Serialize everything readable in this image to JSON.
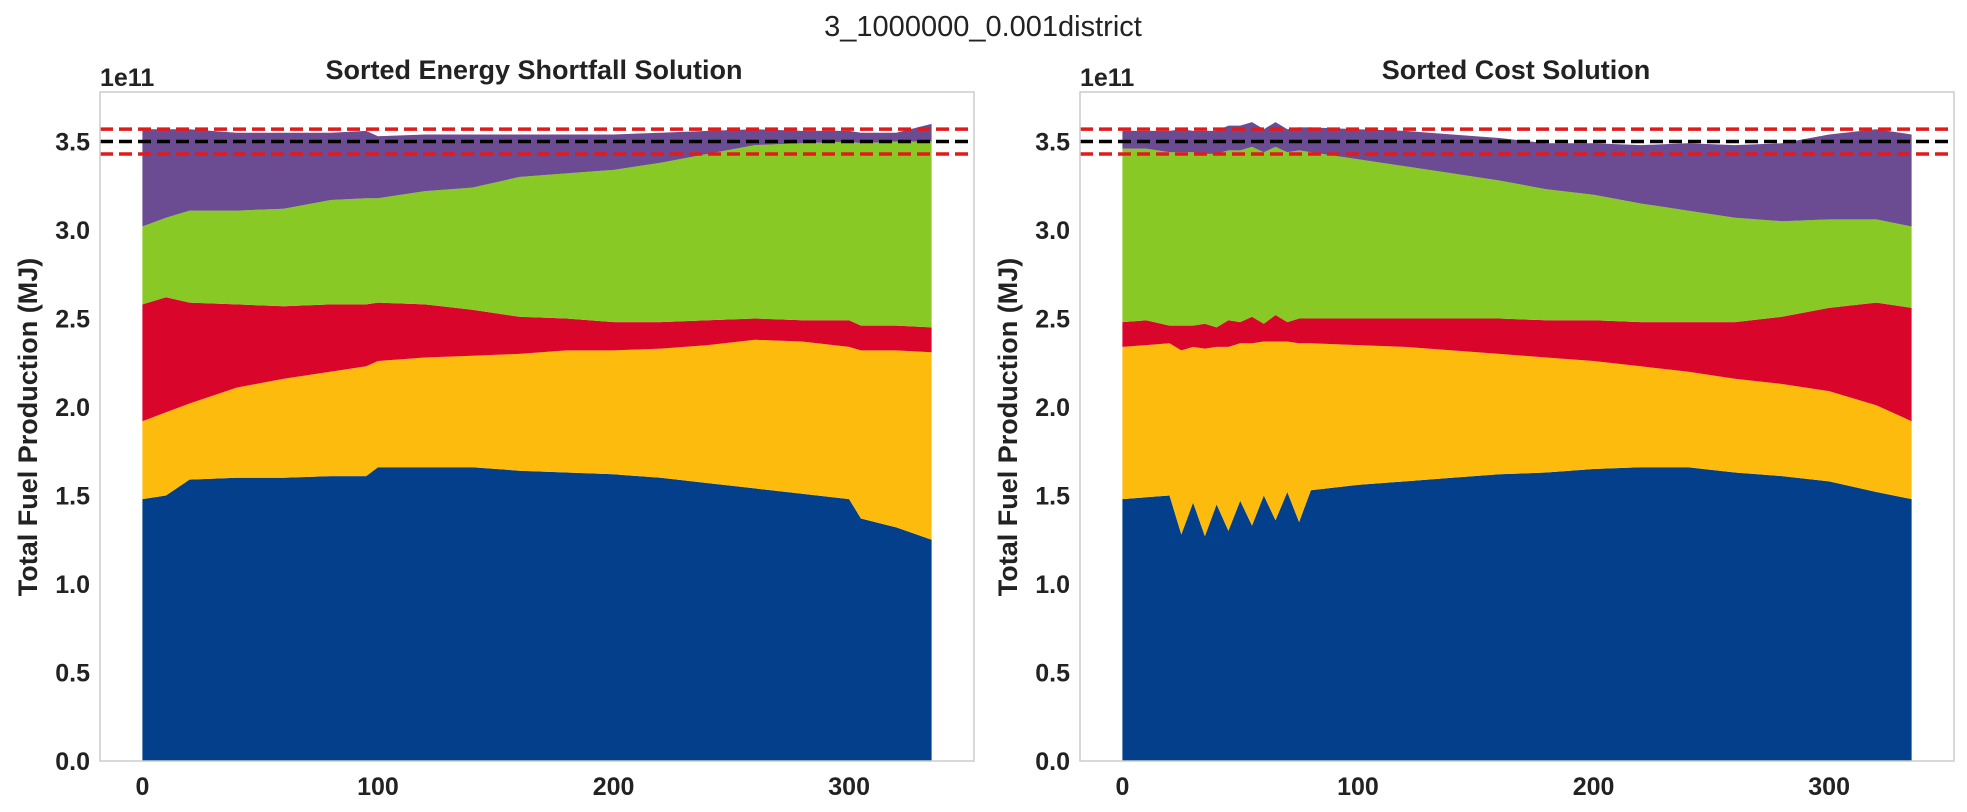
{
  "figure": {
    "suptitle": "3_1000000_0.001district"
  },
  "chart_data": [
    {
      "type": "area",
      "stacked": true,
      "title": "Sorted Energy Shortfall Solution",
      "xlabel": "",
      "ylabel": "Total Fuel Production (MJ)",
      "y_offset_label": "1e11",
      "y_scale": 100000000000,
      "xlim": [
        -18,
        353
      ],
      "ylim": [
        0,
        3.78
      ],
      "xticks": [
        "0",
        "100",
        "200",
        "300"
      ],
      "yticks": [
        "0.0",
        "0.5",
        "1.0",
        "1.5",
        "2.0",
        "2.5",
        "3.0",
        "3.5"
      ],
      "grid": false,
      "colors": [
        "#033f8a",
        "#fdbc0d",
        "#d9052b",
        "#89c926",
        "#6b4c93"
      ],
      "hlines": [
        {
          "y": 3.5,
          "color": "#000000",
          "style": "dashed"
        },
        {
          "y": 3.43,
          "color": "#e31a1c",
          "style": "dashed"
        },
        {
          "y": 3.57,
          "color": "#e31a1c",
          "style": "dashed"
        }
      ],
      "x": [
        0,
        10,
        20,
        40,
        60,
        80,
        95,
        100,
        120,
        140,
        160,
        180,
        200,
        220,
        240,
        260,
        280,
        300,
        305,
        320,
        335
      ],
      "series": [
        {
          "values": [
            1.48,
            1.5,
            1.59,
            1.6,
            1.6,
            1.61,
            1.61,
            1.66,
            1.66,
            1.66,
            1.64,
            1.63,
            1.62,
            1.6,
            1.57,
            1.54,
            1.51,
            1.48,
            1.37,
            1.32,
            1.25
          ]
        },
        {
          "values": [
            0.44,
            0.47,
            0.43,
            0.51,
            0.56,
            0.59,
            0.62,
            0.6,
            0.62,
            0.63,
            0.66,
            0.69,
            0.7,
            0.73,
            0.78,
            0.84,
            0.86,
            0.86,
            0.95,
            1.0,
            1.06
          ]
        },
        {
          "values": [
            0.66,
            0.65,
            0.57,
            0.47,
            0.41,
            0.38,
            0.35,
            0.33,
            0.3,
            0.26,
            0.21,
            0.18,
            0.16,
            0.15,
            0.14,
            0.12,
            0.12,
            0.15,
            0.14,
            0.14,
            0.14
          ]
        },
        {
          "values": [
            0.44,
            0.45,
            0.52,
            0.53,
            0.55,
            0.59,
            0.6,
            0.59,
            0.64,
            0.69,
            0.79,
            0.82,
            0.86,
            0.9,
            0.94,
            0.98,
            1.0,
            1.01,
            1.03,
            1.04,
            1.05
          ]
        },
        {
          "values": [
            0.55,
            0.5,
            0.46,
            0.44,
            0.43,
            0.38,
            0.38,
            0.35,
            0.32,
            0.3,
            0.24,
            0.22,
            0.2,
            0.17,
            0.13,
            0.09,
            0.07,
            0.06,
            0.06,
            0.05,
            0.1
          ]
        }
      ]
    },
    {
      "type": "area",
      "stacked": true,
      "title": "Sorted Cost Solution",
      "xlabel": "",
      "ylabel": "Total Fuel Production (MJ)",
      "y_offset_label": "1e11",
      "y_scale": 100000000000,
      "xlim": [
        -18,
        353
      ],
      "ylim": [
        0,
        3.78
      ],
      "xticks": [
        "0",
        "100",
        "200",
        "300"
      ],
      "yticks": [
        "0.0",
        "0.5",
        "1.0",
        "1.5",
        "2.0",
        "2.5",
        "3.0",
        "3.5"
      ],
      "grid": false,
      "colors": [
        "#033f8a",
        "#fdbc0d",
        "#d9052b",
        "#89c926",
        "#6b4c93"
      ],
      "hlines": [
        {
          "y": 3.5,
          "color": "#000000",
          "style": "dashed"
        },
        {
          "y": 3.43,
          "color": "#e31a1c",
          "style": "dashed"
        },
        {
          "y": 3.57,
          "color": "#e31a1c",
          "style": "dashed"
        }
      ],
      "x": [
        0,
        10,
        20,
        25,
        30,
        35,
        40,
        45,
        50,
        55,
        60,
        65,
        70,
        75,
        80,
        100,
        120,
        140,
        160,
        180,
        200,
        220,
        240,
        260,
        280,
        300,
        320,
        335
      ],
      "series": [
        {
          "values": [
            1.48,
            1.49,
            1.5,
            1.28,
            1.46,
            1.27,
            1.45,
            1.3,
            1.47,
            1.33,
            1.5,
            1.36,
            1.52,
            1.35,
            1.53,
            1.56,
            1.58,
            1.6,
            1.62,
            1.63,
            1.65,
            1.66,
            1.66,
            1.63,
            1.61,
            1.58,
            1.52,
            1.48
          ]
        },
        {
          "values": [
            0.86,
            0.86,
            0.86,
            1.04,
            0.88,
            1.06,
            0.89,
            1.04,
            0.89,
            1.03,
            0.87,
            1.01,
            0.85,
            1.01,
            0.83,
            0.79,
            0.76,
            0.72,
            0.68,
            0.65,
            0.61,
            0.57,
            0.54,
            0.53,
            0.52,
            0.51,
            0.49,
            0.44
          ]
        },
        {
          "values": [
            0.14,
            0.14,
            0.1,
            0.14,
            0.12,
            0.14,
            0.11,
            0.15,
            0.12,
            0.15,
            0.1,
            0.15,
            0.11,
            0.14,
            0.14,
            0.15,
            0.16,
            0.18,
            0.2,
            0.21,
            0.23,
            0.25,
            0.28,
            0.32,
            0.38,
            0.47,
            0.58,
            0.64
          ]
        },
        {
          "values": [
            0.98,
            0.97,
            0.98,
            0.98,
            0.98,
            0.96,
            0.98,
            0.96,
            0.97,
            0.96,
            0.97,
            0.95,
            0.96,
            0.95,
            0.94,
            0.9,
            0.86,
            0.82,
            0.78,
            0.74,
            0.71,
            0.67,
            0.63,
            0.59,
            0.54,
            0.5,
            0.47,
            0.46
          ]
        },
        {
          "values": [
            0.1,
            0.1,
            0.12,
            0.13,
            0.12,
            0.13,
            0.13,
            0.14,
            0.14,
            0.14,
            0.13,
            0.14,
            0.13,
            0.13,
            0.14,
            0.17,
            0.2,
            0.22,
            0.24,
            0.26,
            0.29,
            0.33,
            0.38,
            0.41,
            0.44,
            0.48,
            0.51,
            0.52
          ]
        }
      ]
    }
  ]
}
